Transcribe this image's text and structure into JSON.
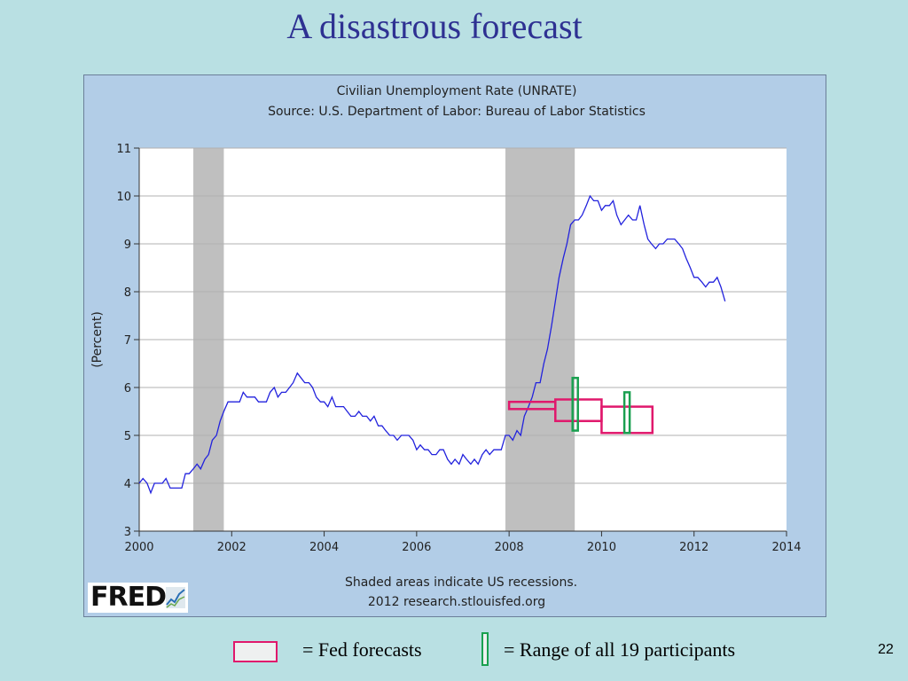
{
  "slide": {
    "title": "A disastrous forecast",
    "page_number": "22"
  },
  "legend": {
    "fed_label": "= Fed forecasts",
    "range_label": "= Range of all 19 participants"
  },
  "logo": {
    "text": "FRED"
  },
  "colors": {
    "series": "#2222dd",
    "recession": "#bfbfbf",
    "fed_forecast": "#e0186c",
    "participant_range": "#1aa050",
    "plot_bg": "#ffffff",
    "frame_bg": "#b2cde7",
    "title": "#2e3192"
  },
  "chart_data": {
    "type": "line",
    "title": "Civilian Unemployment Rate (UNRATE)",
    "subtitle": "Source: U.S. Department of Labor: Bureau of Labor Statistics",
    "xlabel": "",
    "ylabel": "(Percent)",
    "xlim": [
      2000,
      2014
    ],
    "ylim": [
      3,
      11
    ],
    "x_ticks": [
      2000,
      2002,
      2004,
      2006,
      2008,
      2010,
      2012,
      2014
    ],
    "y_ticks": [
      3,
      4,
      5,
      6,
      7,
      8,
      9,
      10,
      11
    ],
    "grid": true,
    "footnote_1": "Shaded areas indicate US recessions.",
    "footnote_2": "2012 research.stlouisfed.org",
    "recessions": [
      {
        "start": 2001.17,
        "end": 2001.83
      },
      {
        "start": 2007.92,
        "end": 2009.42
      }
    ],
    "series": [
      {
        "x": [
          2000.0,
          2000.08,
          2000.17,
          2000.25,
          2000.33,
          2000.42,
          2000.5,
          2000.58,
          2000.67,
          2000.75,
          2000.83,
          2000.92,
          2001.0,
          2001.08,
          2001.17,
          2001.25,
          2001.33,
          2001.42,
          2001.5,
          2001.58,
          2001.67,
          2001.75,
          2001.83,
          2001.92,
          2002.0,
          2002.08,
          2002.17,
          2002.25,
          2002.33,
          2002.42,
          2002.5,
          2002.58,
          2002.67,
          2002.75,
          2002.83,
          2002.92,
          2003.0,
          2003.08,
          2003.17,
          2003.25,
          2003.33,
          2003.42,
          2003.5,
          2003.58,
          2003.67,
          2003.75,
          2003.83,
          2003.92,
          2004.0,
          2004.08,
          2004.17,
          2004.25,
          2004.33,
          2004.42,
          2004.5,
          2004.58,
          2004.67,
          2004.75,
          2004.83,
          2004.92,
          2005.0,
          2005.08,
          2005.17,
          2005.25,
          2005.33,
          2005.42,
          2005.5,
          2005.58,
          2005.67,
          2005.75,
          2005.83,
          2005.92,
          2006.0,
          2006.08,
          2006.17,
          2006.25,
          2006.33,
          2006.42,
          2006.5,
          2006.58,
          2006.67,
          2006.75,
          2006.83,
          2006.92,
          2007.0,
          2007.08,
          2007.17,
          2007.25,
          2007.33,
          2007.42,
          2007.5,
          2007.58,
          2007.67,
          2007.75,
          2007.83,
          2007.92,
          2008.0,
          2008.08,
          2008.17,
          2008.25,
          2008.33,
          2008.42,
          2008.5,
          2008.58,
          2008.67,
          2008.75,
          2008.83,
          2008.92,
          2009.0,
          2009.08,
          2009.17,
          2009.25,
          2009.33,
          2009.42,
          2009.5,
          2009.58,
          2009.67,
          2009.75,
          2009.83,
          2009.92,
          2010.0,
          2010.08,
          2010.17,
          2010.25,
          2010.33,
          2010.42,
          2010.5,
          2010.58,
          2010.67,
          2010.75,
          2010.83,
          2010.92,
          2011.0,
          2011.08,
          2011.17,
          2011.25,
          2011.33,
          2011.42,
          2011.5,
          2011.58,
          2011.67,
          2011.75,
          2011.83,
          2011.92,
          2012.0,
          2012.08,
          2012.17,
          2012.25,
          2012.33,
          2012.42,
          2012.5,
          2012.58,
          2012.67
        ],
        "values": [
          4.0,
          4.1,
          4.0,
          3.8,
          4.0,
          4.0,
          4.0,
          4.1,
          3.9,
          3.9,
          3.9,
          3.9,
          4.2,
          4.2,
          4.3,
          4.4,
          4.3,
          4.5,
          4.6,
          4.9,
          5.0,
          5.3,
          5.5,
          5.7,
          5.7,
          5.7,
          5.7,
          5.9,
          5.8,
          5.8,
          5.8,
          5.7,
          5.7,
          5.7,
          5.9,
          6.0,
          5.8,
          5.9,
          5.9,
          6.0,
          6.1,
          6.3,
          6.2,
          6.1,
          6.1,
          6.0,
          5.8,
          5.7,
          5.7,
          5.6,
          5.8,
          5.6,
          5.6,
          5.6,
          5.5,
          5.4,
          5.4,
          5.5,
          5.4,
          5.4,
          5.3,
          5.4,
          5.2,
          5.2,
          5.1,
          5.0,
          5.0,
          4.9,
          5.0,
          5.0,
          5.0,
          4.9,
          4.7,
          4.8,
          4.7,
          4.7,
          4.6,
          4.6,
          4.7,
          4.7,
          4.5,
          4.4,
          4.5,
          4.4,
          4.6,
          4.5,
          4.4,
          4.5,
          4.4,
          4.6,
          4.7,
          4.6,
          4.7,
          4.7,
          4.7,
          5.0,
          5.0,
          4.9,
          5.1,
          5.0,
          5.4,
          5.6,
          5.8,
          6.1,
          6.1,
          6.5,
          6.8,
          7.3,
          7.8,
          8.3,
          8.7,
          9.0,
          9.4,
          9.5,
          9.5,
          9.6,
          9.8,
          10.0,
          9.9,
          9.9,
          9.7,
          9.8,
          9.8,
          9.9,
          9.6,
          9.4,
          9.5,
          9.6,
          9.5,
          9.5,
          9.8,
          9.4,
          9.1,
          9.0,
          8.9,
          9.0,
          9.0,
          9.1,
          9.1,
          9.1,
          9.0,
          8.9,
          8.7,
          8.5,
          8.3,
          8.3,
          8.2,
          8.1,
          8.2,
          8.2,
          8.3,
          8.1,
          7.8
        ]
      }
    ],
    "fed_forecasts": [
      {
        "x0": 2008.0,
        "x1": 2009.0,
        "y0": 5.55,
        "y1": 5.7
      },
      {
        "x0": 2009.0,
        "x1": 2010.0,
        "y0": 5.3,
        "y1": 5.75
      },
      {
        "x0": 2010.0,
        "x1": 2011.1,
        "y0": 5.05,
        "y1": 5.6
      }
    ],
    "participant_ranges": [
      {
        "x": 2009.43,
        "y0": 5.1,
        "y1": 6.2
      },
      {
        "x": 2010.55,
        "y0": 5.05,
        "y1": 5.9
      }
    ]
  }
}
